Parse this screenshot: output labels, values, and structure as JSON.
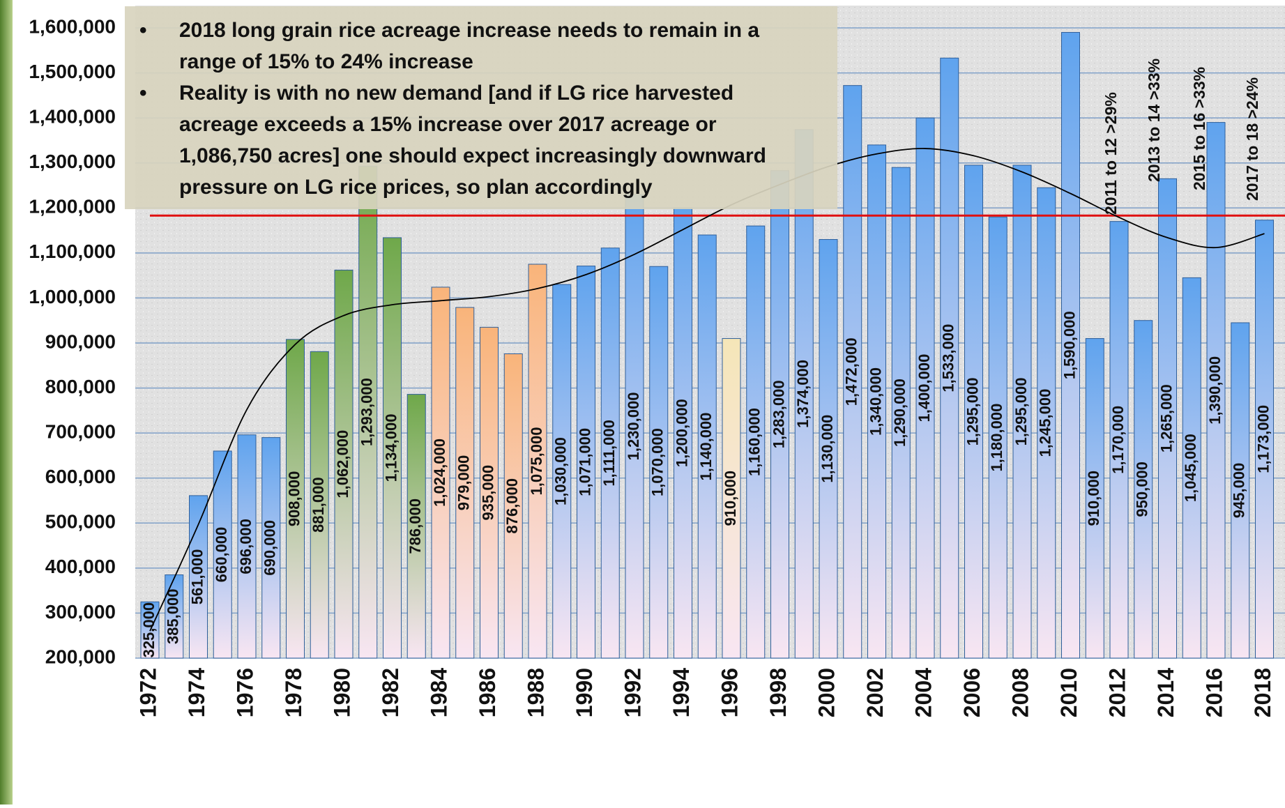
{
  "chart_data": {
    "type": "bar",
    "categories": [
      "1972",
      null,
      "1974",
      null,
      "1976",
      null,
      "1978",
      null,
      "1980",
      null,
      "1982",
      null,
      "1984",
      null,
      "1986",
      null,
      "1988",
      null,
      "1990",
      null,
      "1992",
      null,
      "1994",
      null,
      "1996",
      null,
      "1998",
      null,
      "2000",
      null,
      "2002",
      null,
      "2004",
      null,
      "2006",
      null,
      "2008",
      null,
      "2010",
      null,
      "2012",
      null,
      "2014",
      null,
      "2016",
      null,
      "2018"
    ],
    "values": [
      325000,
      385000,
      561000,
      660000,
      696000,
      690000,
      908000,
      881000,
      1062000,
      1293000,
      1134000,
      786000,
      1024000,
      979000,
      935000,
      876000,
      1075000,
      1030000,
      1071000,
      1111000,
      1230000,
      1070000,
      1200000,
      1140000,
      910000,
      1160000,
      1283000,
      1374000,
      1130000,
      1472000,
      1340000,
      1290000,
      1400000,
      1533000,
      1295000,
      1180000,
      1295000,
      1245000,
      1590000,
      910000,
      1170000,
      950000,
      1265000,
      1045000,
      1390000,
      945000,
      1173000
    ],
    "value_labels": [
      "325,000",
      "385,000",
      "561,000",
      "660,000",
      "696,000",
      "690,000",
      "908,000",
      "881,000",
      "1,062,000",
      "1,293,000",
      "1,134,000",
      "786,000",
      "1,024,000",
      "979,000",
      "935,000",
      "876,000",
      "1,075,000",
      "1,030,000",
      "1,071,000",
      "1,111,000",
      "1,230,000",
      "1,070,000",
      "1,200,000",
      "1,140,000",
      "910,000",
      "1,160,000",
      "1,283,000",
      "1,374,000",
      "1,130,000",
      "1,472,000",
      "1,340,000",
      "1,290,000",
      "1,400,000",
      "1,533,000",
      "1,295,000",
      "1,180,000",
      "1,295,000",
      "1,245,000",
      "1,590,000",
      "910,000",
      "1,170,000",
      "950,000",
      "1,265,000",
      "1,045,000",
      "1,390,000",
      "945,000",
      "1,173,000"
    ],
    "colors": [
      "#5fa3ee",
      "#5fa3ee",
      "#5fa3ee",
      "#5fa3ee",
      "#5fa3ee",
      "#5fa3ee",
      "#6fa84a",
      "#6fa84a",
      "#6fa84a",
      "#6fa84a",
      "#6fa84a",
      "#6fa84a",
      "#f9b47a",
      "#f9b47a",
      "#f9b47a",
      "#f9b47a",
      "#f9b47a",
      "#5fa3ee",
      "#5fa3ee",
      "#5fa3ee",
      "#5fa3ee",
      "#5fa3ee",
      "#5fa3ee",
      "#5fa3ee",
      "#f5e6b8",
      "#5fa3ee",
      "#5fa3ee",
      "#5fa3ee",
      "#5fa3ee",
      "#5fa3ee",
      "#5fa3ee",
      "#5fa3ee",
      "#5fa3ee",
      "#5fa3ee",
      "#5fa3ee",
      "#5fa3ee",
      "#5fa3ee",
      "#5fa3ee",
      "#5fa3ee",
      "#5fa3ee",
      "#5fa3ee",
      "#5fa3ee",
      "#5fa3ee",
      "#5fa3ee",
      "#5fa3ee",
      "#5fa3ee",
      "#5fa3ee"
    ],
    "ylim": [
      200000,
      1600000
    ],
    "yticks": [
      {
        "value": 200000,
        "label": "200,000"
      },
      {
        "value": 300000,
        "label": "300,000"
      },
      {
        "value": 400000,
        "label": "400,000"
      },
      {
        "value": 500000,
        "label": "500,000"
      },
      {
        "value": 600000,
        "label": "600,000"
      },
      {
        "value": 700000,
        "label": "700,000"
      },
      {
        "value": 800000,
        "label": "800,000"
      },
      {
        "value": 900000,
        "label": "900,000"
      },
      {
        "value": 1000000,
        "label": "1,000,000"
      },
      {
        "value": 1100000,
        "label": "1,100,000"
      },
      {
        "value": 1200000,
        "label": "1,200,000"
      },
      {
        "value": 1300000,
        "label": "1,300,000"
      },
      {
        "value": 1400000,
        "label": "1,400,000"
      },
      {
        "value": 1500000,
        "label": "1,500,000"
      },
      {
        "value": 1600000,
        "label": "1,600,000"
      }
    ],
    "grid": true,
    "grid_color": "#7fa0c8",
    "reference_line": {
      "value": 1183000,
      "color": "#e01010"
    },
    "trend": {
      "color": "#000000",
      "x": [
        1972,
        1974,
        1976,
        1978,
        1980,
        1982,
        1984,
        1986,
        1988,
        1990,
        1992,
        1994,
        1996,
        1998,
        2000,
        2002,
        2004,
        2006,
        2008,
        2010,
        2012,
        2014,
        2016,
        2018
      ],
      "values": [
        260000,
        497000,
        752000,
        897000,
        961000,
        985000,
        994000,
        1003000,
        1021000,
        1052000,
        1097000,
        1152000,
        1207000,
        1252000,
        1292000,
        1320000,
        1332000,
        1316000,
        1280000,
        1232000,
        1179000,
        1134000,
        1112000,
        1143000
      ]
    },
    "notes": [
      [
        "2018 long grain rice acreage increase needs to remain in a",
        "range of 15% to 24% increase"
      ],
      [
        "Reality is with no new demand [and if LG rice harvested",
        "acreage exceeds a 15% increase over 2017 acreage or",
        "1,086,750 acres] one should expect increasingly downward",
        "pressure on LG rice prices, so plan accordingly"
      ]
    ],
    "bullet": "•",
    "annotations": [
      {
        "text": "2011 to 12 >29%",
        "value": 1170000
      },
      {
        "text": "2013 to 14 >33%",
        "value": 1265000
      },
      {
        "text": "2015 to 16 >33%",
        "value": 1390000
      },
      {
        "text": "2017 to 18 >24%",
        "value": 1173000
      }
    ]
  }
}
